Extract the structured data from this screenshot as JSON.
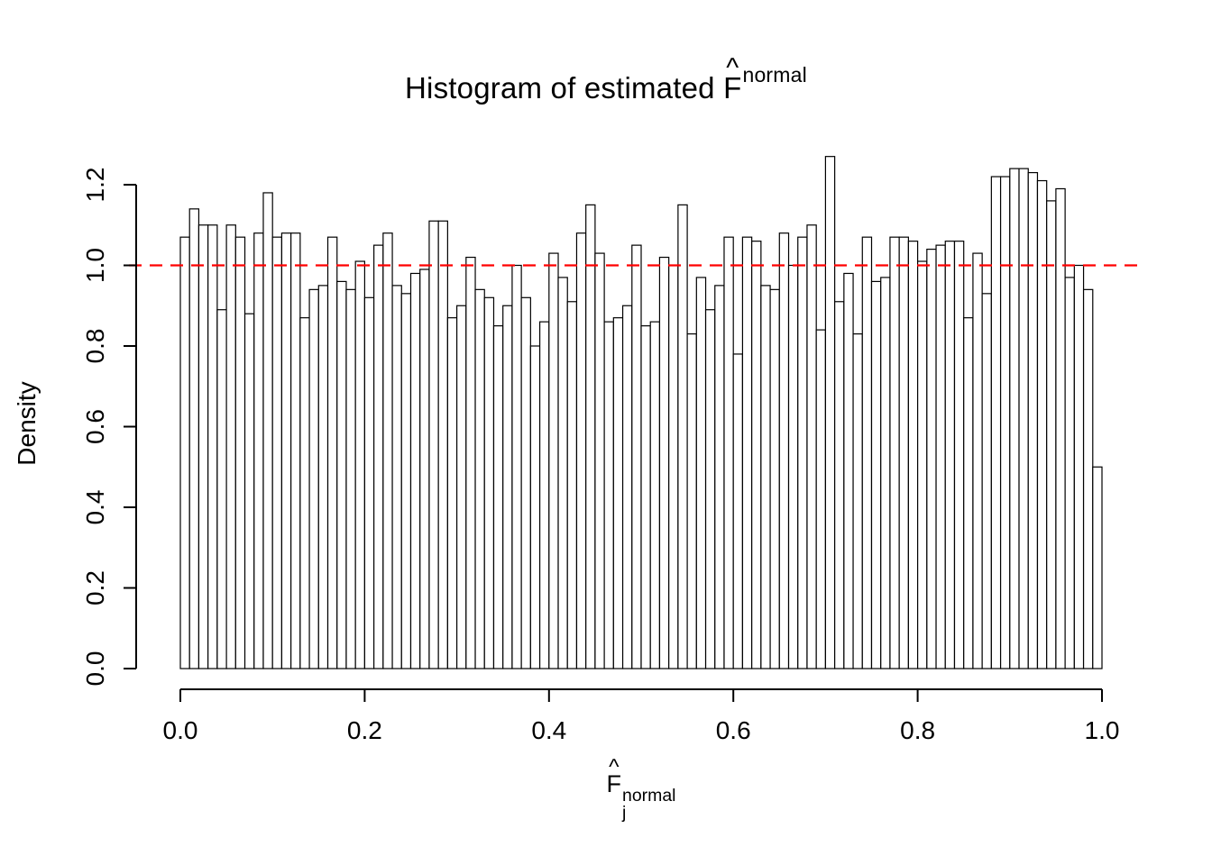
{
  "labels": {
    "title_prefix": "Histogram of estimated ",
    "f": "F",
    "hat": "^",
    "sup_normal": "normal",
    "sub_j": "j",
    "ylabel": "Density"
  },
  "colors": {
    "background": "#ffffff",
    "bar_fill": "#ffffff",
    "bar_stroke": "#000000",
    "axis": "#000000",
    "reference_line": "#ff0000"
  },
  "chart_data": {
    "type": "bar",
    "subtype": "histogram",
    "title": "Histogram of estimated F^normal",
    "xlabel": "F_j^normal",
    "ylabel": "Density",
    "xlim": [
      0.0,
      1.0
    ],
    "ylim": [
      0.0,
      1.2
    ],
    "x_ticks": [
      0.0,
      0.2,
      0.4,
      0.6,
      0.8,
      1.0
    ],
    "y_ticks": [
      0.0,
      0.2,
      0.4,
      0.6,
      0.8,
      1.0,
      1.2
    ],
    "grid": false,
    "legend": "none",
    "bin_start": 0.0,
    "bin_width": 0.01,
    "reference_line": {
      "y": 1.0,
      "color": "#ff0000",
      "style": "dashed"
    },
    "values": [
      1.07,
      1.14,
      1.1,
      1.1,
      0.89,
      1.1,
      1.07,
      0.88,
      1.08,
      1.18,
      1.07,
      1.08,
      1.08,
      0.87,
      0.94,
      0.95,
      1.07,
      0.96,
      0.94,
      1.01,
      0.92,
      1.05,
      1.08,
      0.95,
      0.93,
      0.98,
      0.99,
      1.11,
      1.11,
      0.87,
      0.9,
      1.02,
      0.94,
      0.92,
      0.85,
      0.9,
      1.0,
      0.92,
      0.8,
      0.86,
      1.03,
      0.97,
      0.91,
      1.08,
      1.15,
      1.03,
      0.86,
      0.87,
      0.9,
      1.05,
      0.85,
      0.86,
      1.02,
      1.0,
      1.15,
      0.83,
      0.97,
      0.89,
      0.95,
      1.07,
      0.78,
      1.07,
      1.06,
      0.95,
      0.94,
      1.08,
      1.0,
      1.07,
      1.1,
      0.84,
      1.27,
      0.91,
      0.98,
      0.83,
      1.07,
      0.96,
      0.97,
      1.07,
      1.07,
      1.06,
      1.01,
      1.04,
      1.05,
      1.06,
      1.06,
      0.87,
      1.03,
      0.93,
      1.22,
      1.22,
      1.24,
      1.24,
      1.23,
      1.21,
      1.16,
      1.19,
      0.97,
      1.0,
      0.94,
      0.5
    ]
  }
}
